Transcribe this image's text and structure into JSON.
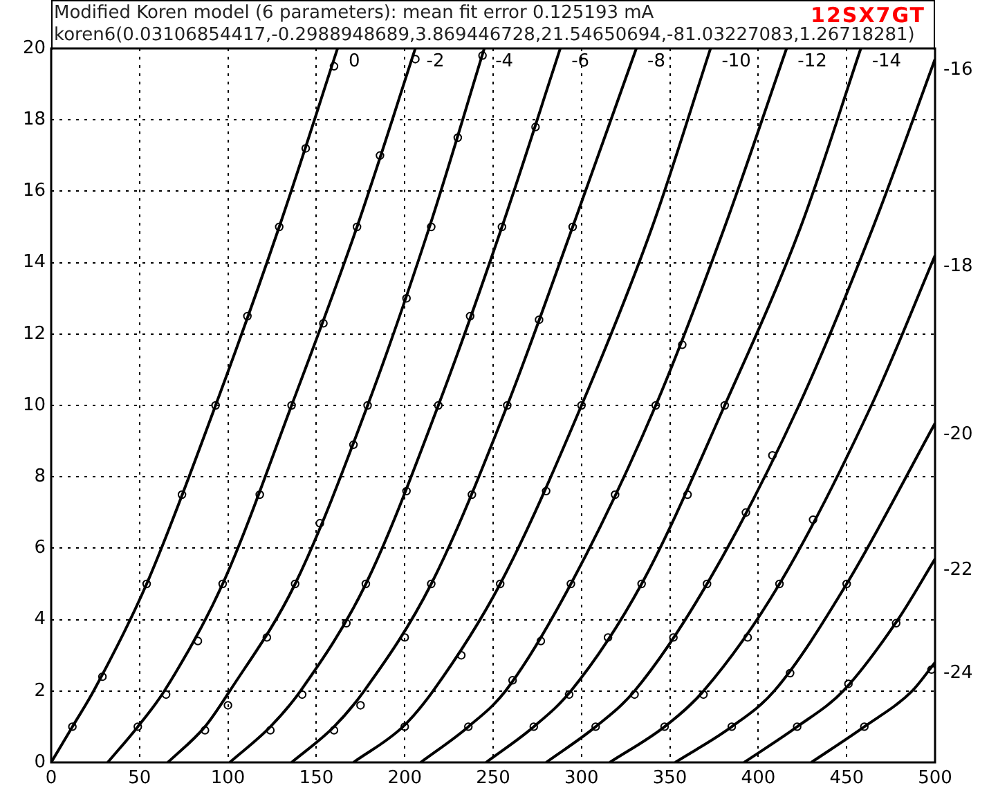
{
  "chart_data": {
    "type": "line",
    "title": "Modified Koren model (6 parameters): mean fit error 0.125193 mA",
    "subtitle": "koren6(0.03106854417,-0.2988948689,3.869446728,21.54650694,-81.03227083,1.26718281)",
    "annotations": [
      "12SX7GT"
    ],
    "xlim": [
      0,
      500
    ],
    "xticks": [
      0,
      50,
      100,
      150,
      200,
      250,
      300,
      350,
      400,
      450,
      500
    ],
    "ylim": [
      0,
      20
    ],
    "yticks": [
      0,
      2,
      4,
      6,
      8,
      10,
      12,
      14,
      16,
      18,
      20
    ],
    "grid": true,
    "marker": "none",
    "line_style": "solid",
    "series": [
      {
        "name": "0",
        "color": "#000000",
        "x": [
          0,
          12,
          24,
          54,
          93,
          129,
          162
        ],
        "values": [
          0,
          1,
          2,
          5,
          10,
          15,
          20
        ]
      },
      {
        "name": "-2",
        "color": "#000000",
        "x": [
          32,
          49,
          64,
          97,
          136,
          173,
          206
        ],
        "values": [
          0,
          1,
          2,
          5,
          10,
          15,
          20
        ]
      },
      {
        "name": "-4",
        "color": "#000000",
        "x": [
          66,
          87,
          101,
          138,
          179,
          214,
          245
        ],
        "values": [
          0,
          1,
          2,
          5,
          10,
          15,
          20
        ]
      },
      {
        "name": "-6",
        "color": "#000000",
        "x": [
          101,
          124,
          141,
          178,
          219,
          255,
          288
        ],
        "values": [
          0,
          1,
          2,
          5,
          10,
          15,
          20
        ]
      },
      {
        "name": "-8",
        "color": "#000000",
        "x": [
          136,
          160,
          177,
          215,
          258,
          295,
          331
        ],
        "values": [
          0,
          1,
          2,
          5,
          10,
          15,
          20
        ]
      },
      {
        "name": "-10",
        "color": "#000000",
        "x": [
          171,
          199,
          216,
          254,
          300,
          340,
          373
        ],
        "values": [
          0,
          1,
          2,
          5,
          10,
          15,
          20
        ]
      },
      {
        "name": "-12",
        "color": "#000000",
        "x": [
          209,
          236,
          257,
          294,
          342,
          381,
          416
        ],
        "values": [
          0,
          1,
          2,
          5,
          10,
          15,
          20
        ]
      },
      {
        "name": "-14",
        "color": "#000000",
        "x": [
          246,
          273,
          294,
          334,
          381,
          424,
          458
        ],
        "values": [
          0,
          1,
          2,
          5,
          10,
          15,
          20
        ]
      },
      {
        "name": "-16",
        "color": "#000000",
        "x": [
          280,
          308,
          330,
          371,
          423,
          465,
          500
        ],
        "values": [
          0,
          1,
          2,
          5,
          10,
          15,
          19.7
        ]
      },
      {
        "name": "-18",
        "color": "#000000",
        "x": [
          316,
          347,
          369,
          412,
          464,
          500
        ],
        "values": [
          0,
          1,
          2,
          5,
          10,
          14.2
        ]
      },
      {
        "name": "-20",
        "color": "#000000",
        "x": [
          353,
          385,
          409,
          450,
          500
        ],
        "values": [
          0,
          1,
          2,
          5,
          9.5
        ]
      },
      {
        "name": "-22",
        "color": "#000000",
        "x": [
          392,
          422,
          448,
          479,
          500
        ],
        "values": [
          0,
          1,
          2,
          4,
          5.7
        ]
      },
      {
        "name": "-24",
        "color": "#000000",
        "x": [
          430,
          460,
          487,
          500
        ],
        "values": [
          0,
          1,
          2,
          2.8
        ]
      },
      {
        "type": "scatter",
        "marker": "circle",
        "color": "#000000",
        "x": [
          12,
          49,
          87,
          124,
          160,
          200,
          236,
          273,
          308,
          347,
          385,
          422,
          460,
          29,
          54,
          65,
          83,
          97,
          100,
          122,
          138,
          142,
          167,
          178,
          175,
          200,
          215,
          232,
          254,
          261,
          277,
          294,
          293,
          315,
          334,
          330,
          352,
          371,
          369,
          394,
          412,
          418,
          450,
          451,
          478,
          498,
          93,
          74,
          136,
          118,
          179,
          171,
          152,
          219,
          201,
          258,
          238,
          300,
          280,
          342,
          319,
          381,
          360,
          408,
          393,
          431,
          160,
          144,
          129,
          111,
          206,
          186,
          173,
          154,
          244,
          230,
          215,
          201,
          237,
          255,
          274,
          295,
          276,
          357
        ],
        "values": [
          1,
          1,
          0.9,
          0.9,
          0.9,
          1,
          1,
          1,
          1,
          1,
          1,
          1,
          1,
          2.4,
          5,
          1.9,
          3.4,
          5,
          1.6,
          3.5,
          5,
          1.9,
          3.9,
          5,
          1.6,
          3.5,
          5,
          3,
          5,
          2.3,
          3.4,
          5,
          1.9,
          3.5,
          5,
          1.9,
          3.5,
          5,
          1.9,
          3.5,
          5,
          2.5,
          5,
          2.2,
          3.9,
          2.6,
          10,
          7.5,
          10,
          7.5,
          10,
          8.9,
          6.7,
          10,
          7.6,
          10,
          7.5,
          10,
          7.6,
          10,
          7.5,
          10,
          7.5,
          8.6,
          7,
          6.8,
          19.5,
          17.2,
          15,
          12.5,
          19.7,
          17,
          15,
          12.3,
          19.8,
          17.5,
          15,
          13,
          12.5,
          15,
          17.8,
          15,
          12.4,
          11.7
        ]
      }
    ]
  }
}
